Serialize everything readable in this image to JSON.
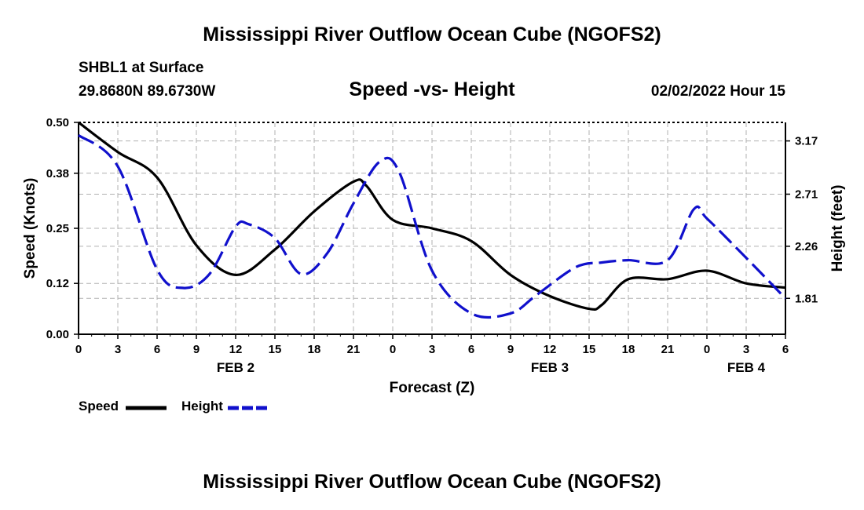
{
  "page": {
    "title_top": "Mississippi River Outflow Ocean Cube (NGOFS2)",
    "title_bottom": "Mississippi River Outflow Ocean Cube (NGOFS2)",
    "station": "SHBL1 at Surface",
    "coords": "29.8680N  89.6730W",
    "datetime": "02/02/2022 Hour 15"
  },
  "colors": {
    "speed": "#000000",
    "height": "#1010cc",
    "grid": "#b0b0b0"
  },
  "chart_data": {
    "type": "line",
    "title": "Speed -vs- Height",
    "xlabel": "Forecast (Z)",
    "ylabel": "Speed (Knots)",
    "y2label": "Height (feet)",
    "xlim": [
      0,
      54
    ],
    "ylim": [
      0,
      0.5
    ],
    "y2lim": [
      1.5,
      3.33
    ],
    "yticks": [
      0,
      0.12,
      0.25,
      0.38,
      0.5
    ],
    "ytick_labels": [
      "0.00",
      "0.12",
      "0.25",
      "0.38",
      "0.50"
    ],
    "y2ticks": [
      1.81,
      2.26,
      2.71,
      3.17
    ],
    "y2tick_labels": [
      "1.81",
      "2.26",
      "2.71",
      "3.17"
    ],
    "xticks": [
      0,
      3,
      6,
      9,
      12,
      15,
      18,
      21,
      24,
      27,
      30,
      33,
      36,
      39,
      42,
      45,
      48,
      51,
      54
    ],
    "xtick_labels": [
      "0",
      "3",
      "6",
      "9",
      "12",
      "15",
      "18",
      "21",
      "0",
      "3",
      "6",
      "9",
      "12",
      "15",
      "18",
      "21",
      "0",
      "3",
      "6"
    ],
    "date_labels": [
      {
        "x": 12,
        "label": "FEB 2"
      },
      {
        "x": 36,
        "label": "FEB 3"
      },
      {
        "x": 51,
        "label": "FEB 4"
      }
    ],
    "grid": true,
    "legend_position": "bottom-left",
    "series": [
      {
        "name": "Speed",
        "axis": "left",
        "style": "solid",
        "x": [
          0,
          3,
          6,
          9,
          12,
          15,
          18,
          21,
          22,
          24,
          27,
          30,
          33,
          36,
          39,
          40,
          42,
          45,
          48,
          51,
          54
        ],
        "values": [
          0.5,
          0.43,
          0.37,
          0.21,
          0.14,
          0.2,
          0.29,
          0.36,
          0.35,
          0.27,
          0.25,
          0.22,
          0.14,
          0.09,
          0.06,
          0.07,
          0.13,
          0.13,
          0.15,
          0.12,
          0.11
        ]
      },
      {
        "name": "Height",
        "axis": "right",
        "style": "dashed",
        "x": [
          0,
          3,
          6,
          8,
          10,
          12,
          13,
          15,
          17,
          19,
          21,
          23,
          24.5,
          27,
          30,
          33,
          35,
          38,
          40,
          42,
          45,
          47,
          48,
          51,
          54
        ],
        "values": [
          3.22,
          2.95,
          2.06,
          1.9,
          2.02,
          2.43,
          2.45,
          2.33,
          2.02,
          2.2,
          2.63,
          2.99,
          2.9,
          2.05,
          1.68,
          1.68,
          1.84,
          2.08,
          2.12,
          2.14,
          2.14,
          2.58,
          2.5,
          2.16,
          1.81
        ]
      }
    ]
  }
}
